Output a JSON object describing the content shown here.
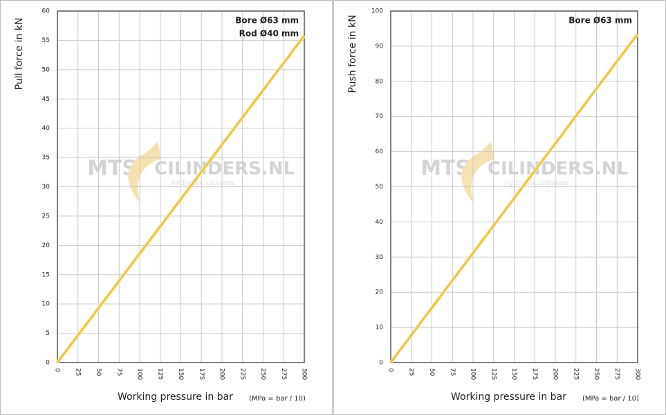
{
  "chart_data": [
    {
      "type": "line",
      "y_label": "Pull force in kN",
      "x_label": "Working pressure in bar",
      "x_label_note": "(MPa = bar / 10)",
      "annotations": [
        "Bore Ø63 mm",
        "Rod   Ø40 mm"
      ],
      "watermark": [
        "MTS",
        "CILINDERS.NL",
        "hydraulic cilinders"
      ],
      "x": [
        0,
        300
      ],
      "values": [
        0,
        55.8
      ],
      "color": "#e8c440",
      "xlim": [
        0,
        300
      ],
      "xticks": [
        0,
        25,
        50,
        75,
        100,
        125,
        150,
        175,
        200,
        225,
        250,
        275,
        300
      ],
      "ylim": [
        0,
        60
      ],
      "yticks": [
        0,
        5,
        10,
        15,
        20,
        25,
        30,
        35,
        40,
        45,
        50,
        55,
        60
      ],
      "grid": true
    },
    {
      "type": "line",
      "y_label": "Push force in kN",
      "x_label": "Working pressure in bar",
      "x_label_note": "(MPa = bar / 10)",
      "annotations": [
        "Bore Ø63 mm"
      ],
      "watermark": [
        "MTS",
        "CILINDERS.NL",
        "hydraulic cilinders"
      ],
      "x": [
        0,
        300
      ],
      "values": [
        0,
        93.5
      ],
      "color": "#e8c440",
      "xlim": [
        0,
        300
      ],
      "xticks": [
        0,
        25,
        50,
        75,
        100,
        125,
        150,
        175,
        200,
        225,
        250,
        275,
        300
      ],
      "ylim": [
        0,
        100
      ],
      "yticks": [
        0,
        10,
        20,
        30,
        40,
        50,
        60,
        70,
        80,
        90,
        100
      ],
      "grid": true
    }
  ]
}
